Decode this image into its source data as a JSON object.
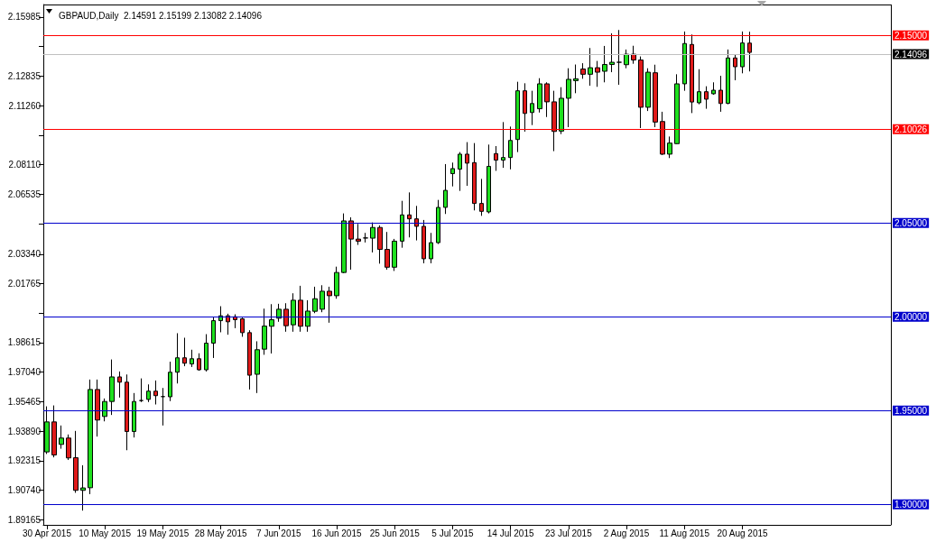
{
  "chart_data": {
    "type": "candlestick",
    "title": "GBPAUD,Daily  2.14591 2.15199 2.13082 2.14096",
    "categories": [
      "30 Apr 2015",
      null,
      null,
      null,
      null,
      null,
      null,
      null,
      "10 May 2015",
      null,
      null,
      null,
      null,
      null,
      null,
      null,
      "19 May 2015",
      null,
      null,
      null,
      null,
      null,
      null,
      null,
      "28 May 2015",
      null,
      null,
      null,
      null,
      null,
      null,
      null,
      "7 Jun 2015",
      null,
      null,
      null,
      null,
      null,
      null,
      null,
      "16 Jun 2015",
      null,
      null,
      null,
      null,
      null,
      null,
      null,
      "25 Jun 2015",
      null,
      null,
      null,
      null,
      null,
      null,
      null,
      "5 Jul 2015",
      null,
      null,
      null,
      null,
      null,
      null,
      null,
      "14 Jul 2015",
      null,
      null,
      null,
      null,
      null,
      null,
      null,
      "23 Jul 2015",
      null,
      null,
      null,
      null,
      null,
      null,
      null,
      "2 Aug 2015",
      null,
      null,
      null,
      null,
      null,
      null,
      null,
      "11 Aug 2015",
      null,
      null,
      null,
      null,
      null,
      null,
      null,
      "20 Aug 2015",
      null
    ],
    "ohlc": [
      [
        1.9279,
        1.9522,
        1.9268,
        1.9439
      ],
      [
        1.9439,
        1.9527,
        1.925,
        1.9263
      ],
      [
        1.9319,
        1.942,
        1.9296,
        1.9353
      ],
      [
        1.9353,
        1.9372,
        1.9236,
        1.9247
      ],
      [
        1.9248,
        1.9391,
        1.9061,
        1.9074
      ],
      [
        1.9074,
        1.9208,
        1.8966,
        1.9087
      ],
      [
        1.9088,
        1.9665,
        1.9054,
        1.9612
      ],
      [
        1.9612,
        1.9665,
        1.9361,
        1.9449
      ],
      [
        1.9468,
        1.9564,
        1.9442,
        1.9548
      ],
      [
        1.9548,
        1.9772,
        1.9476,
        1.9679
      ],
      [
        1.9679,
        1.9708,
        1.9569,
        1.9651
      ],
      [
        1.9651,
        1.9692,
        1.9288,
        1.9388
      ],
      [
        1.9388,
        1.9593,
        1.9356,
        1.9548
      ],
      [
        1.9553,
        1.9671,
        1.9545,
        1.9553
      ],
      [
        1.9559,
        1.9639,
        1.9545,
        1.9603
      ],
      [
        1.9603,
        1.966,
        1.9532,
        1.9579
      ],
      [
        1.9574,
        1.962,
        1.942,
        1.9574
      ],
      [
        1.9573,
        1.976,
        1.955,
        1.9704
      ],
      [
        1.9704,
        1.9912,
        1.9644,
        1.9781
      ],
      [
        1.9781,
        1.9888,
        1.9736,
        1.9752
      ],
      [
        1.9748,
        1.9824,
        1.9732,
        1.9776
      ],
      [
        1.9776,
        1.9805,
        1.9712,
        1.9717
      ],
      [
        1.9717,
        1.9907,
        1.9708,
        1.9859
      ],
      [
        1.9859,
        2.0,
        1.978,
        1.9979
      ],
      [
        1.9979,
        2.0056,
        1.9917,
        2.0005
      ],
      [
        2.0005,
        2.0016,
        1.9904,
        1.9973
      ],
      [
        2.0,
        2.0013,
        1.9939,
        1.9984
      ],
      [
        1.9989,
        1.9995,
        1.9893,
        1.9915
      ],
      [
        1.9915,
        1.9928,
        1.9612,
        1.9688
      ],
      [
        1.9693,
        1.9869,
        1.9593,
        1.9824
      ],
      [
        1.9827,
        2.0043,
        1.9797,
        1.995
      ],
      [
        1.9949,
        2.0067,
        1.9804,
        1.9984
      ],
      [
        1.9992,
        2.0069,
        1.9973,
        2.004
      ],
      [
        2.004,
        2.0072,
        1.992,
        1.9952
      ],
      [
        1.9957,
        2.0125,
        1.992,
        2.0088
      ],
      [
        2.0088,
        2.0165,
        1.992,
        1.9949
      ],
      [
        1.9949,
        2.0088,
        1.992,
        2.003
      ],
      [
        2.0029,
        2.016,
        2.0019,
        2.0096
      ],
      [
        2.004,
        2.0168,
        2.0024,
        2.0136
      ],
      [
        2.0136,
        2.016,
        1.9968,
        2.0112
      ],
      [
        2.0112,
        2.0267,
        2.0096,
        2.0236
      ],
      [
        2.0236,
        2.0551,
        2.0232,
        2.0511
      ],
      [
        2.0511,
        2.053,
        2.0251,
        2.0414
      ],
      [
        2.0414,
        2.0495,
        2.0383,
        2.0403
      ],
      [
        2.042,
        2.0447,
        2.0396,
        2.042
      ],
      [
        2.0419,
        2.0503,
        2.0343,
        2.0476
      ],
      [
        2.0476,
        2.0487,
        2.0283,
        2.0359
      ],
      [
        2.0359,
        2.0452,
        2.0251,
        2.0264
      ],
      [
        2.0264,
        2.0415,
        2.0244,
        2.0403
      ],
      [
        2.0403,
        2.0618,
        2.0368,
        2.0543
      ],
      [
        2.0543,
        2.0663,
        2.0423,
        2.0522
      ],
      [
        2.0522,
        2.0591,
        2.0407,
        2.0482
      ],
      [
        2.0482,
        2.0516,
        2.0285,
        2.0309
      ],
      [
        2.0309,
        2.0447,
        2.0285,
        2.0395
      ],
      [
        2.0395,
        2.0623,
        2.0388,
        2.0583
      ],
      [
        2.0583,
        2.0814,
        2.0548,
        2.0674
      ],
      [
        2.0763,
        2.0822,
        2.0695,
        2.079
      ],
      [
        2.0787,
        2.0878,
        2.0671,
        2.0867
      ],
      [
        2.0867,
        2.0931,
        2.0698,
        2.0819
      ],
      [
        2.0822,
        2.0926,
        2.0567,
        2.0604
      ],
      [
        2.0604,
        2.0735,
        2.0538,
        2.0562
      ],
      [
        2.0559,
        2.0918,
        2.0551,
        2.0802
      ],
      [
        2.087,
        2.091,
        2.0778,
        2.0835
      ],
      [
        2.0835,
        2.1038,
        2.0794,
        2.0849
      ],
      [
        2.0849,
        2.1014,
        2.0786,
        2.094
      ],
      [
        2.0945,
        2.1253,
        2.0878,
        2.1205
      ],
      [
        2.1205,
        2.1245,
        2.0987,
        2.1084
      ],
      [
        2.1089,
        2.1205,
        2.1022,
        2.1137
      ],
      [
        2.1109,
        2.1272,
        2.1089,
        2.1242
      ],
      [
        2.1242,
        2.125,
        2.1065,
        2.1146
      ],
      [
        2.1146,
        2.1205,
        2.0883,
        2.0988
      ],
      [
        2.099,
        2.1224,
        2.0974,
        2.1165
      ],
      [
        2.1165,
        2.1325,
        2.1011,
        2.1266
      ],
      [
        2.1259,
        2.1345,
        2.1192,
        2.1269
      ],
      [
        2.1321,
        2.1352,
        2.1269,
        2.1293
      ],
      [
        2.1293,
        2.1433,
        2.1232,
        2.1328
      ],
      [
        2.1328,
        2.1364,
        2.1226,
        2.1304
      ],
      [
        2.1309,
        2.1444,
        2.125,
        2.1345
      ],
      [
        2.1345,
        2.1511,
        2.1304,
        2.1357
      ],
      [
        2.1357,
        2.1529,
        2.1237,
        2.1357
      ],
      [
        2.1344,
        2.1425,
        2.1325,
        2.14
      ],
      [
        2.14,
        2.1445,
        2.1349,
        2.1369
      ],
      [
        2.1369,
        2.1388,
        2.1006,
        2.1117
      ],
      [
        2.1117,
        2.1325,
        2.1097,
        2.1304
      ],
      [
        2.1301,
        2.1344,
        2.1011,
        2.1038
      ],
      [
        2.1041,
        2.1093,
        2.0862,
        2.0867
      ],
      [
        2.0867,
        2.0961,
        2.0846,
        2.0926
      ],
      [
        2.0923,
        2.1293,
        2.0921,
        2.1242
      ],
      [
        2.1242,
        2.1521,
        2.1205,
        2.1457
      ],
      [
        2.1452,
        2.1505,
        2.1086,
        2.1145
      ],
      [
        2.1141,
        2.132,
        2.1133,
        2.12
      ],
      [
        2.12,
        2.1229,
        2.1109,
        2.116
      ],
      [
        2.1189,
        2.125,
        2.1184,
        2.1208
      ],
      [
        2.1208,
        2.1285,
        2.1093,
        2.1137
      ],
      [
        2.1138,
        2.1425,
        2.1133,
        2.138
      ],
      [
        2.138,
        2.14,
        2.1261,
        2.1333
      ],
      [
        2.1333,
        2.1521,
        2.1298,
        2.146
      ],
      [
        2.14591,
        2.15199,
        2.13082,
        2.14096
      ]
    ],
    "colors": [
      "#1fe01f",
      "#e01a1a",
      "#1fe01f",
      "#e01a1a",
      "#e01a1a",
      "#1fe01f",
      "#1fe01f",
      "#e01a1a",
      "#1fe01f",
      "#1fe01f",
      "#e01a1a",
      "#e01a1a",
      "#1fe01f",
      "#000000",
      "#1fe01f",
      "#e01a1a",
      "#000000",
      "#1fe01f",
      "#1fe01f",
      "#e01a1a",
      "#1fe01f",
      "#e01a1a",
      "#1fe01f",
      "#1fe01f",
      "#1fe01f",
      "#e01a1a",
      "#e01a1a",
      "#e01a1a",
      "#e01a1a",
      "#1fe01f",
      "#1fe01f",
      "#1fe01f",
      "#1fe01f",
      "#e01a1a",
      "#1fe01f",
      "#e01a1a",
      "#1fe01f",
      "#1fe01f",
      "#1fe01f",
      "#e01a1a",
      "#1fe01f",
      "#1fe01f",
      "#e01a1a",
      "#e01a1a",
      "#000000",
      "#1fe01f",
      "#e01a1a",
      "#e01a1a",
      "#1fe01f",
      "#1fe01f",
      "#e01a1a",
      "#e01a1a",
      "#e01a1a",
      "#1fe01f",
      "#1fe01f",
      "#1fe01f",
      "#1fe01f",
      "#1fe01f",
      "#e01a1a",
      "#e01a1a",
      "#e01a1a",
      "#1fe01f",
      "#e01a1a",
      "#1fe01f",
      "#1fe01f",
      "#1fe01f",
      "#e01a1a",
      "#1fe01f",
      "#1fe01f",
      "#e01a1a",
      "#e01a1a",
      "#1fe01f",
      "#1fe01f",
      "#1fe01f",
      "#e01a1a",
      "#1fe01f",
      "#e01a1a",
      "#1fe01f",
      "#1fe01f",
      "#000000",
      "#1fe01f",
      "#e01a1a",
      "#e01a1a",
      "#1fe01f",
      "#e01a1a",
      "#e01a1a",
      "#1fe01f",
      "#1fe01f",
      "#1fe01f",
      "#e01a1a",
      "#1fe01f",
      "#e01a1a",
      "#1fe01f",
      "#e01a1a",
      "#1fe01f",
      "#e01a1a",
      "#1fe01f",
      "#e01a1a"
    ],
    "ylim": [
      1.889,
      2.1665
    ],
    "yticks": [
      {
        "value": 2.15985,
        "label": "2.15985"
      },
      {
        "value": 2.1441,
        "label": null
      },
      {
        "value": 2.12835,
        "label": "2.12835"
      },
      {
        "value": 2.1126,
        "label": "2.11260"
      },
      {
        "value": 2.09685,
        "label": null
      },
      {
        "value": 2.0811,
        "label": "2.08110"
      },
      {
        "value": 2.06535,
        "label": "2.06535"
      },
      {
        "value": 2.0496,
        "label": null
      },
      {
        "value": 2.0334,
        "label": "2.03340"
      },
      {
        "value": 2.01765,
        "label": "2.01765"
      },
      {
        "value": 2.0019,
        "label": null
      },
      {
        "value": 1.98615,
        "label": "1.98615"
      },
      {
        "value": 1.9704,
        "label": "1.97040"
      },
      {
        "value": 1.95465,
        "label": "1.95465"
      },
      {
        "value": 1.9389,
        "label": "1.93890"
      },
      {
        "value": 1.92315,
        "label": "1.92315"
      },
      {
        "value": 1.9074,
        "label": "1.90740"
      },
      {
        "value": 1.89165,
        "label": "1.89165"
      }
    ],
    "ref_lines": [
      {
        "axis": "y",
        "value": 2.15,
        "label": "2.15000",
        "color": "#ff0000"
      },
      {
        "axis": "y",
        "value": 2.14096,
        "label": "2.14096",
        "color": "#c0c0c0"
      },
      {
        "axis": "y",
        "value": 2.10026,
        "label": "2.10026",
        "color": "#ff0000"
      },
      {
        "axis": "y",
        "value": 2.05,
        "label": "2.05000",
        "color": "#0000cc"
      },
      {
        "axis": "y",
        "value": 2.0,
        "label": "2.00000",
        "color": "#0000cc"
      },
      {
        "axis": "y",
        "value": 1.95,
        "label": "1.95000",
        "color": "#0000cc"
      },
      {
        "axis": "y",
        "value": 1.9,
        "label": "1.90000",
        "color": "#0000cc"
      }
    ],
    "grid": false
  }
}
